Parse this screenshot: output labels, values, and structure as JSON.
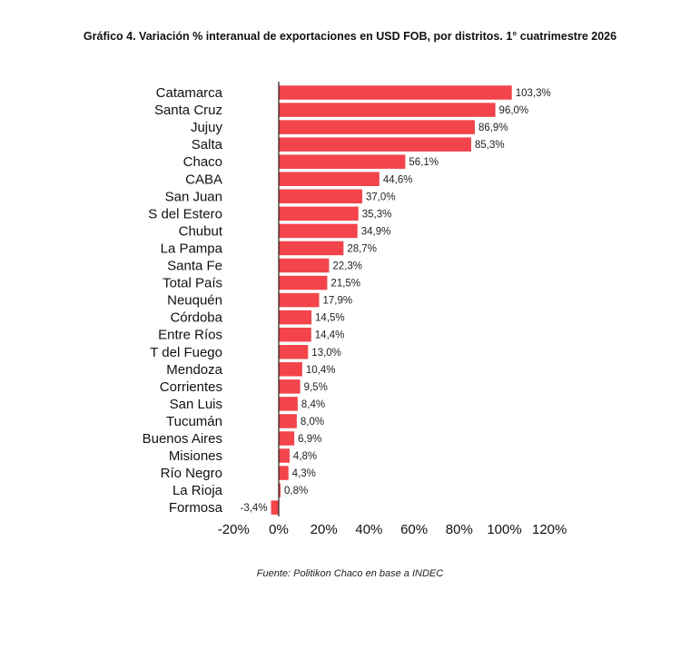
{
  "chart_data": {
    "type": "bar",
    "orientation": "horizontal",
    "title": "Gráfico 4. Variación % interanual de exportaciones en USD FOB, por distritos. 1° cuatrimestre 2026",
    "source": "Fuente: Politikon Chaco en base a INDEC",
    "xlim": [
      -20,
      120
    ],
    "xticks": [
      -20,
      0,
      20,
      40,
      60,
      80,
      100,
      120
    ],
    "xtick_labels": [
      "-20%",
      "0%",
      "20%",
      "40%",
      "60%",
      "80%",
      "100%",
      "120%"
    ],
    "grid": false,
    "bar_color": "#f2444a",
    "axis_color": "#222222",
    "categories": [
      "Catamarca",
      "Santa Cruz",
      "Jujuy",
      "Salta",
      "Chaco",
      "CABA",
      "San Juan",
      "S del Estero",
      "Chubut",
      "La Pampa",
      "Santa Fe",
      "Total País",
      "Neuquén",
      "Córdoba",
      "Entre Ríos",
      "T del Fuego",
      "Mendoza",
      "Corrientes",
      "San Luis",
      "Tucumán",
      "Buenos Aires",
      "Misiones",
      "Río Negro",
      "La Rioja",
      "Formosa"
    ],
    "values": [
      103.3,
      96.0,
      86.9,
      85.3,
      56.1,
      44.6,
      37.0,
      35.3,
      34.9,
      28.7,
      22.3,
      21.5,
      17.9,
      14.5,
      14.4,
      13.0,
      10.4,
      9.5,
      8.4,
      8.0,
      6.9,
      4.8,
      4.3,
      0.8,
      -3.4
    ],
    "value_labels": [
      "103,3%",
      "96,0%",
      "86,9%",
      "85,3%",
      "56,1%",
      "44,6%",
      "37,0%",
      "35,3%",
      "34,9%",
      "28,7%",
      "22,3%",
      "21,5%",
      "17,9%",
      "14,5%",
      "14,4%",
      "13,0%",
      "10,4%",
      "9,5%",
      "8,4%",
      "8,0%",
      "6,9%",
      "4,8%",
      "4,3%",
      "0,8%",
      "-3,4%"
    ]
  }
}
